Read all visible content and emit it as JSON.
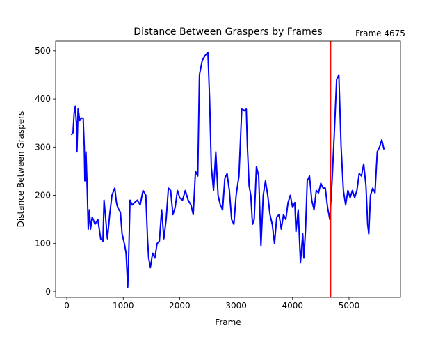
{
  "chart_data": {
    "type": "line",
    "title": "Distance Between Graspers by Frames",
    "x_label": "Frame",
    "y_label": "Distance Between Graspers",
    "annotation": "Frame 4675",
    "vline": {
      "x": 4675,
      "color": "red"
    },
    "color": "blue",
    "x": [
      80,
      110,
      130,
      150,
      170,
      180,
      200,
      230,
      260,
      290,
      310,
      320,
      340,
      360,
      380,
      400,
      420,
      450,
      500,
      550,
      600,
      640,
      660,
      690,
      720,
      760,
      800,
      850,
      880,
      900,
      950,
      980,
      1020,
      1050,
      1080,
      1100,
      1120,
      1160,
      1200,
      1250,
      1300,
      1350,
      1400,
      1430,
      1450,
      1480,
      1520,
      1560,
      1600,
      1640,
      1680,
      1720,
      1760,
      1800,
      1840,
      1880,
      1920,
      1960,
      2000,
      2050,
      2100,
      2150,
      2200,
      2240,
      2280,
      2320,
      2350,
      2400,
      2450,
      2500,
      2530,
      2560,
      2600,
      2640,
      2680,
      2720,
      2760,
      2800,
      2840,
      2880,
      2920,
      2960,
      3000,
      3050,
      3100,
      3150,
      3180,
      3200,
      3230,
      3260,
      3290,
      3320,
      3360,
      3400,
      3440,
      3480,
      3520,
      3560,
      3600,
      3640,
      3680,
      3720,
      3760,
      3800,
      3840,
      3880,
      3920,
      3960,
      4000,
      4040,
      4060,
      4100,
      4140,
      4180,
      4200,
      4230,
      4260,
      4300,
      4340,
      4380,
      4420,
      4460,
      4500,
      4540,
      4580,
      4620,
      4660,
      4700,
      4740,
      4780,
      4820,
      4860,
      4900,
      4940,
      4980,
      5020,
      5060,
      5100,
      5140,
      5180,
      5220,
      5260,
      5300,
      5330,
      5350,
      5380,
      5420,
      5460,
      5500,
      5540,
      5580,
      5620
    ],
    "values": [
      325,
      330,
      370,
      385,
      350,
      290,
      380,
      355,
      360,
      360,
      300,
      230,
      290,
      220,
      130,
      170,
      130,
      155,
      140,
      150,
      110,
      105,
      190,
      150,
      110,
      160,
      200,
      215,
      185,
      175,
      165,
      120,
      100,
      80,
      10,
      90,
      190,
      180,
      185,
      190,
      180,
      210,
      200,
      110,
      70,
      50,
      80,
      70,
      100,
      105,
      170,
      110,
      150,
      215,
      210,
      160,
      175,
      210,
      195,
      190,
      210,
      190,
      180,
      160,
      250,
      240,
      450,
      480,
      490,
      497,
      400,
      260,
      210,
      290,
      200,
      180,
      170,
      235,
      245,
      210,
      150,
      140,
      200,
      240,
      380,
      375,
      380,
      300,
      220,
      200,
      140,
      150,
      260,
      240,
      95,
      200,
      230,
      200,
      160,
      140,
      100,
      155,
      160,
      130,
      160,
      150,
      185,
      200,
      175,
      185,
      125,
      170,
      60,
      120,
      70,
      130,
      230,
      240,
      190,
      170,
      210,
      205,
      225,
      215,
      215,
      175,
      150,
      230,
      330,
      440,
      450,
      300,
      210,
      180,
      210,
      195,
      210,
      195,
      210,
      245,
      240,
      265,
      220,
      140,
      120,
      200,
      215,
      205,
      290,
      300,
      315,
      295
    ],
    "xlim": [
      -198,
      5912
    ],
    "ylim": [
      -11.6,
      520
    ],
    "xticks": [
      0,
      1000,
      2000,
      3000,
      4000,
      5000
    ],
    "yticks": [
      0,
      100,
      200,
      300,
      400,
      500
    ]
  }
}
